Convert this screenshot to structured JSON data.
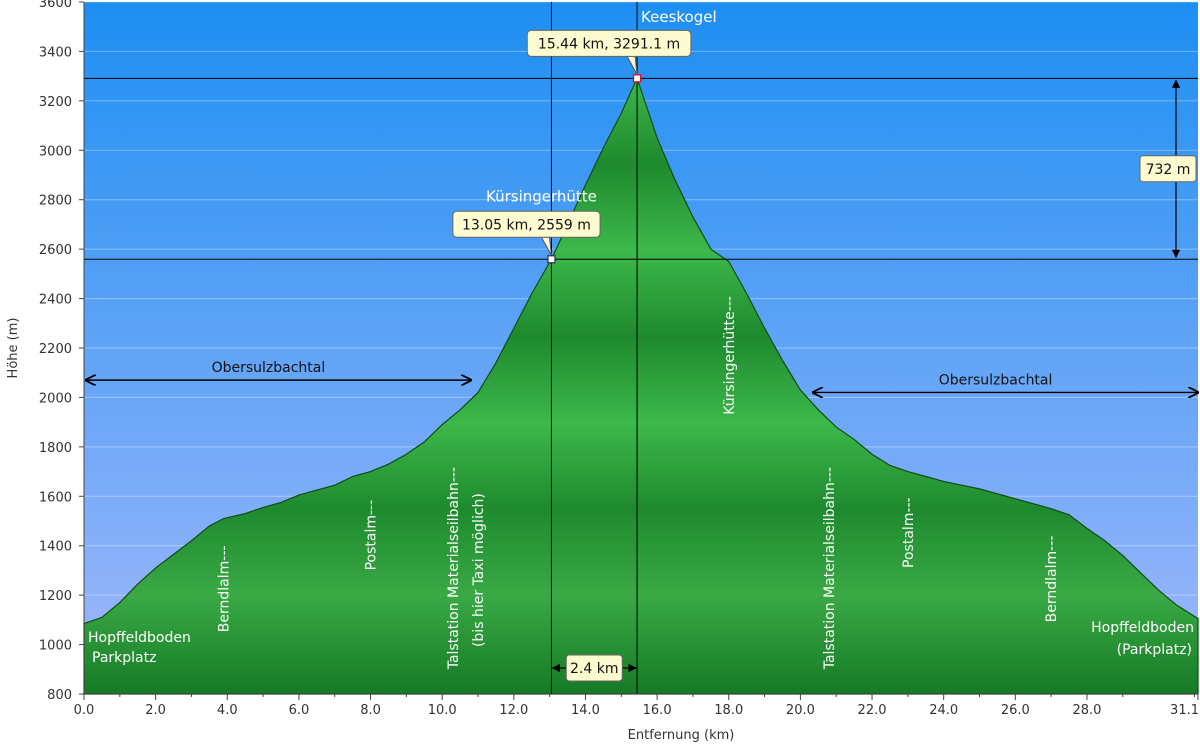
{
  "chart_data": {
    "type": "area",
    "xlabel": "Entfernung   (km)",
    "ylabel": "Höhe (m)",
    "xlim": [
      0.0,
      31.1
    ],
    "ylim": [
      800,
      3600
    ],
    "x_ticks": [
      "0.0",
      "2.0",
      "4.0",
      "6.0",
      "8.0",
      "10.0",
      "12.0",
      "14.0",
      "16.0",
      "18.0",
      "20.0",
      "22.0",
      "24.0",
      "26.0",
      "28.0",
      "31.1"
    ],
    "y_ticks": [
      "800",
      "1000",
      "1200",
      "1400",
      "1600",
      "1800",
      "2000",
      "2200",
      "2400",
      "2600",
      "2800",
      "3000",
      "3200",
      "3400",
      "3600"
    ],
    "grid": true,
    "colors": {
      "sky_top": "#1d8ff2",
      "sky_bottom": "#a3b8fb",
      "fill_light": "#3db84a",
      "fill_dark": "#157a25",
      "callout_bg": "#fffbd0"
    },
    "series": [
      {
        "x": [
          0.0,
          0.5,
          1.0,
          1.5,
          2.0,
          2.5,
          3.0,
          3.5,
          3.9,
          4.5,
          5.0,
          5.5,
          6.0,
          6.5,
          7.0,
          7.5,
          8.0,
          8.5,
          9.0,
          9.5,
          10.0,
          10.5,
          11.0,
          11.5,
          12.0,
          12.5,
          13.05,
          13.5,
          14.0,
          14.5,
          15.0,
          15.44,
          16.0,
          16.5,
          17.0,
          17.5,
          18.0,
          18.5,
          19.0,
          19.5,
          20.0,
          20.5,
          21.0,
          21.5,
          22.0,
          22.5,
          23.0,
          23.5,
          24.0,
          24.5,
          25.0,
          25.5,
          26.0,
          26.5,
          27.0,
          27.5,
          28.0,
          28.5,
          29.0,
          29.5,
          30.0,
          30.5,
          31.1
        ],
        "y": [
          1085,
          1110,
          1170,
          1245,
          1310,
          1365,
          1420,
          1480,
          1510,
          1530,
          1555,
          1575,
          1605,
          1625,
          1645,
          1680,
          1700,
          1730,
          1770,
          1820,
          1890,
          1950,
          2020,
          2140,
          2280,
          2420,
          2559,
          2700,
          2860,
          3010,
          3150,
          3291.1,
          3050,
          2880,
          2730,
          2600,
          2550,
          2420,
          2280,
          2150,
          2030,
          1950,
          1880,
          1830,
          1770,
          1725,
          1700,
          1680,
          1660,
          1645,
          1630,
          1610,
          1590,
          1570,
          1550,
          1525,
          1470,
          1420,
          1360,
          1290,
          1220,
          1160,
          1105
        ]
      }
    ],
    "markers": [
      {
        "name": "Keeskogel",
        "x": 15.44,
        "y": 3291.1,
        "callout": "15.44 km, 3291.1 m"
      },
      {
        "name": "Kürsingerhütte",
        "x": 13.05,
        "y": 2559,
        "callout": "13.05 km, 2559 m"
      }
    ],
    "vertical_labels": [
      {
        "text": "Berndlalm---",
        "x": 3.9,
        "base": 1050
      },
      {
        "text": "Postalm---",
        "x": 8.0,
        "base": 1300
      },
      {
        "text": "Talstation Materialseilbahn---",
        "x": 10.3,
        "base": 900
      },
      {
        "text": "(bis hier Taxi möglich)",
        "x": 11.0,
        "base": 990
      },
      {
        "text": "Kürsingerhütte---",
        "x": 18.0,
        "base": 1930
      },
      {
        "text": "Talstation Materialseilbahn---",
        "x": 20.8,
        "base": 900
      },
      {
        "text": "Postalm---",
        "x": 23.0,
        "base": 1310
      },
      {
        "text": "Berndlalm---",
        "x": 27.0,
        "base": 1090
      }
    ],
    "corner_labels": {
      "left_1": "Hopffeldboden",
      "left_2": "Parkplatz",
      "right_1": "Hopffeldboden",
      "right_2": "(Parkplatz)"
    },
    "regions": [
      {
        "text": "Obersulzbachtal",
        "x_from": 0.0,
        "x_to": 10.8,
        "y": 2070
      },
      {
        "text": "Obersulzbachtal",
        "x_from": 20.3,
        "x_to": 31.1,
        "y": 2020
      }
    ],
    "measurements": {
      "horizontal": "2.4 km",
      "vertical": "732 m"
    }
  }
}
